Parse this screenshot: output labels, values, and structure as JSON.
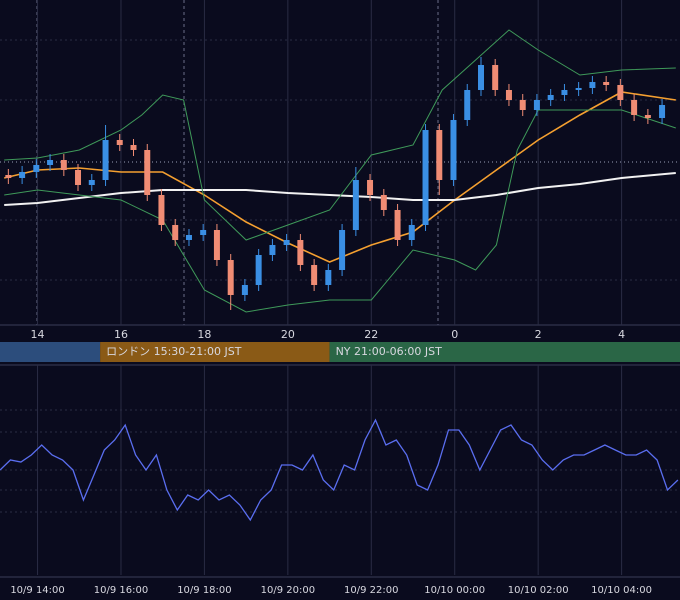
{
  "chart_data": {
    "type": "candlestick",
    "xlim": [
      13.1,
      29.4
    ],
    "ylim": [
      0,
      325
    ],
    "xticks": [
      14,
      16,
      18,
      20,
      22,
      {
        "value": 24,
        "label": "0"
      },
      {
        "value": 26,
        "label": "2"
      },
      {
        "value": 28,
        "label": "4"
      }
    ],
    "up_color": "#3a8fe4",
    "down_color": "#f08c74",
    "x": [
      13.3,
      13.63,
      13.97,
      14.3,
      14.63,
      14.97,
      15.3,
      15.63,
      15.97,
      16.3,
      16.63,
      16.97,
      17.3,
      17.63,
      17.97,
      18.3,
      18.63,
      18.97,
      19.3,
      19.63,
      19.97,
      20.3,
      20.63,
      20.97,
      21.3,
      21.63,
      21.97,
      22.3,
      22.63,
      22.97,
      23.3,
      23.63,
      23.97,
      24.3,
      24.63,
      24.97,
      25.3,
      25.63,
      25.97,
      26.3,
      26.63,
      26.97,
      27.3,
      27.63,
      27.97,
      28.3,
      28.63,
      28.97
    ],
    "open": [
      150,
      147,
      153,
      160,
      165,
      155,
      140,
      145,
      185,
      180,
      175,
      130,
      100,
      85,
      90,
      95,
      65,
      30,
      40,
      70,
      80,
      85,
      60,
      40,
      55,
      95,
      145,
      130,
      115,
      85,
      100,
      195,
      145,
      205,
      235,
      260,
      235,
      225,
      215,
      225,
      230,
      235,
      237,
      243,
      240,
      225,
      210,
      207
    ],
    "high": [
      156,
      159,
      166,
      171,
      171,
      161,
      151,
      200,
      191,
      186,
      181,
      136,
      106,
      96,
      101,
      101,
      71,
      46,
      76,
      86,
      91,
      91,
      66,
      61,
      101,
      158,
      151,
      136,
      121,
      106,
      201,
      201,
      211,
      241,
      268,
      266,
      241,
      231,
      231,
      236,
      241,
      243,
      249,
      249,
      246,
      231,
      216,
      226
    ],
    "low": [
      141,
      141,
      147,
      154,
      149,
      134,
      134,
      139,
      174,
      169,
      124,
      94,
      79,
      79,
      84,
      59,
      15,
      24,
      34,
      64,
      74,
      54,
      34,
      34,
      49,
      89,
      124,
      109,
      79,
      79,
      94,
      130,
      139,
      199,
      229,
      229,
      219,
      209,
      209,
      219,
      224,
      229,
      231,
      234,
      219,
      204,
      201,
      201
    ],
    "close": [
      147,
      153,
      160,
      165,
      155,
      140,
      145,
      185,
      180,
      175,
      130,
      100,
      85,
      90,
      95,
      65,
      30,
      40,
      70,
      80,
      85,
      60,
      40,
      55,
      95,
      145,
      130,
      115,
      85,
      100,
      195,
      145,
      205,
      235,
      260,
      235,
      225,
      215,
      225,
      230,
      235,
      237,
      243,
      240,
      225,
      210,
      207,
      220
    ],
    "lines": [
      {
        "color": "#f5a030",
        "x": [
          13.2,
          14,
          15,
          16,
          17,
          18,
          19,
          20,
          21,
          22,
          23,
          24,
          25,
          26,
          27,
          28,
          29.3
        ],
        "values": [
          147,
          155,
          157,
          153,
          153,
          130,
          103,
          82,
          63,
          80,
          93,
          125,
          155,
          185,
          210,
          233,
          225
        ]
      },
      {
        "color": "#f2f2f2",
        "x": [
          13.2,
          14,
          15,
          16,
          17,
          18,
          19,
          20,
          21,
          22,
          23,
          24,
          25,
          26,
          27,
          28,
          29.3
        ],
        "values": [
          120,
          122,
          127,
          132,
          135,
          135,
          135,
          132,
          130,
          128,
          125,
          125,
          130,
          137,
          141,
          147,
          152
        ]
      },
      {
        "color": "#3f9a5a",
        "x": [
          13.2,
          14,
          15,
          16,
          16.5,
          17,
          17.5,
          18,
          19,
          20,
          21,
          22,
          23,
          23.7,
          24.5,
          25.3,
          26,
          27,
          28,
          29.3
        ],
        "values": [
          165,
          167,
          175,
          195,
          210,
          230,
          225,
          125,
          85,
          100,
          115,
          170,
          180,
          235,
          265,
          295,
          275,
          250,
          255,
          257
        ]
      },
      {
        "color": "#3f9a5a",
        "x": [
          13.2,
          14,
          15,
          16,
          17,
          18,
          19,
          20,
          21,
          22,
          23,
          24,
          24.5,
          25,
          25.5,
          26,
          27,
          28,
          29.3
        ],
        "values": [
          130,
          135,
          130,
          125,
          105,
          35,
          13,
          20,
          25,
          25,
          75,
          65,
          55,
          80,
          175,
          215,
          215,
          215,
          197
        ]
      }
    ],
    "sessions": [
      {
        "start": 9,
        "end": 15.5,
        "color": "#2c4d7c"
      },
      {
        "name": "ロンドン 15:30-21:00 JST",
        "start": 15.5,
        "end": 21,
        "color": "#8a5a16"
      },
      {
        "name": "NY 21:00-06:00 JST",
        "start": 21,
        "end": 30,
        "color": "#2a6646"
      }
    ],
    "oscillator": {
      "type": "line",
      "color": "#5a6ef0",
      "ylim": [
        0,
        210
      ],
      "xticks": [
        {
          "value": 14,
          "label": "10/9 14:00"
        },
        {
          "value": 16,
          "label": "10/9 16:00"
        },
        {
          "value": 18,
          "label": "10/9 18:00"
        },
        {
          "value": 20,
          "label": "10/9 20:00"
        },
        {
          "value": 22,
          "label": "10/9 22:00"
        },
        {
          "value": 24,
          "label": "10/10 00:00"
        },
        {
          "value": 26,
          "label": "10/10 02:00"
        },
        {
          "value": 28,
          "label": "10/10 04:00"
        }
      ],
      "x": [
        13.1,
        13.35,
        13.6,
        13.85,
        14.1,
        14.35,
        14.6,
        14.85,
        15.1,
        15.35,
        15.6,
        15.85,
        16.1,
        16.35,
        16.6,
        16.85,
        17.1,
        17.35,
        17.6,
        17.85,
        18.1,
        18.35,
        18.6,
        18.85,
        19.1,
        19.35,
        19.6,
        19.85,
        20.1,
        20.35,
        20.6,
        20.85,
        21.1,
        21.35,
        21.6,
        21.85,
        22.1,
        22.35,
        22.6,
        22.85,
        23.1,
        23.35,
        23.6,
        23.85,
        24.1,
        24.35,
        24.6,
        24.85,
        25.1,
        25.35,
        25.6,
        25.85,
        26.1,
        26.35,
        26.6,
        26.85,
        27.1,
        27.35,
        27.6,
        27.85,
        28.1,
        28.35,
        28.6,
        28.85,
        29.1,
        29.35
      ],
      "values": [
        105,
        115,
        113,
        120,
        130,
        120,
        115,
        105,
        75,
        100,
        125,
        135,
        150,
        120,
        105,
        120,
        85,
        65,
        80,
        75,
        85,
        75,
        80,
        70,
        55,
        75,
        85,
        110,
        110,
        105,
        120,
        95,
        85,
        110,
        105,
        135,
        155,
        130,
        135,
        120,
        90,
        85,
        110,
        145,
        145,
        130,
        105,
        125,
        145,
        150,
        135,
        130,
        115,
        105,
        115,
        120,
        120,
        125,
        130,
        125,
        120,
        120,
        125,
        115,
        85,
        95
      ]
    }
  }
}
